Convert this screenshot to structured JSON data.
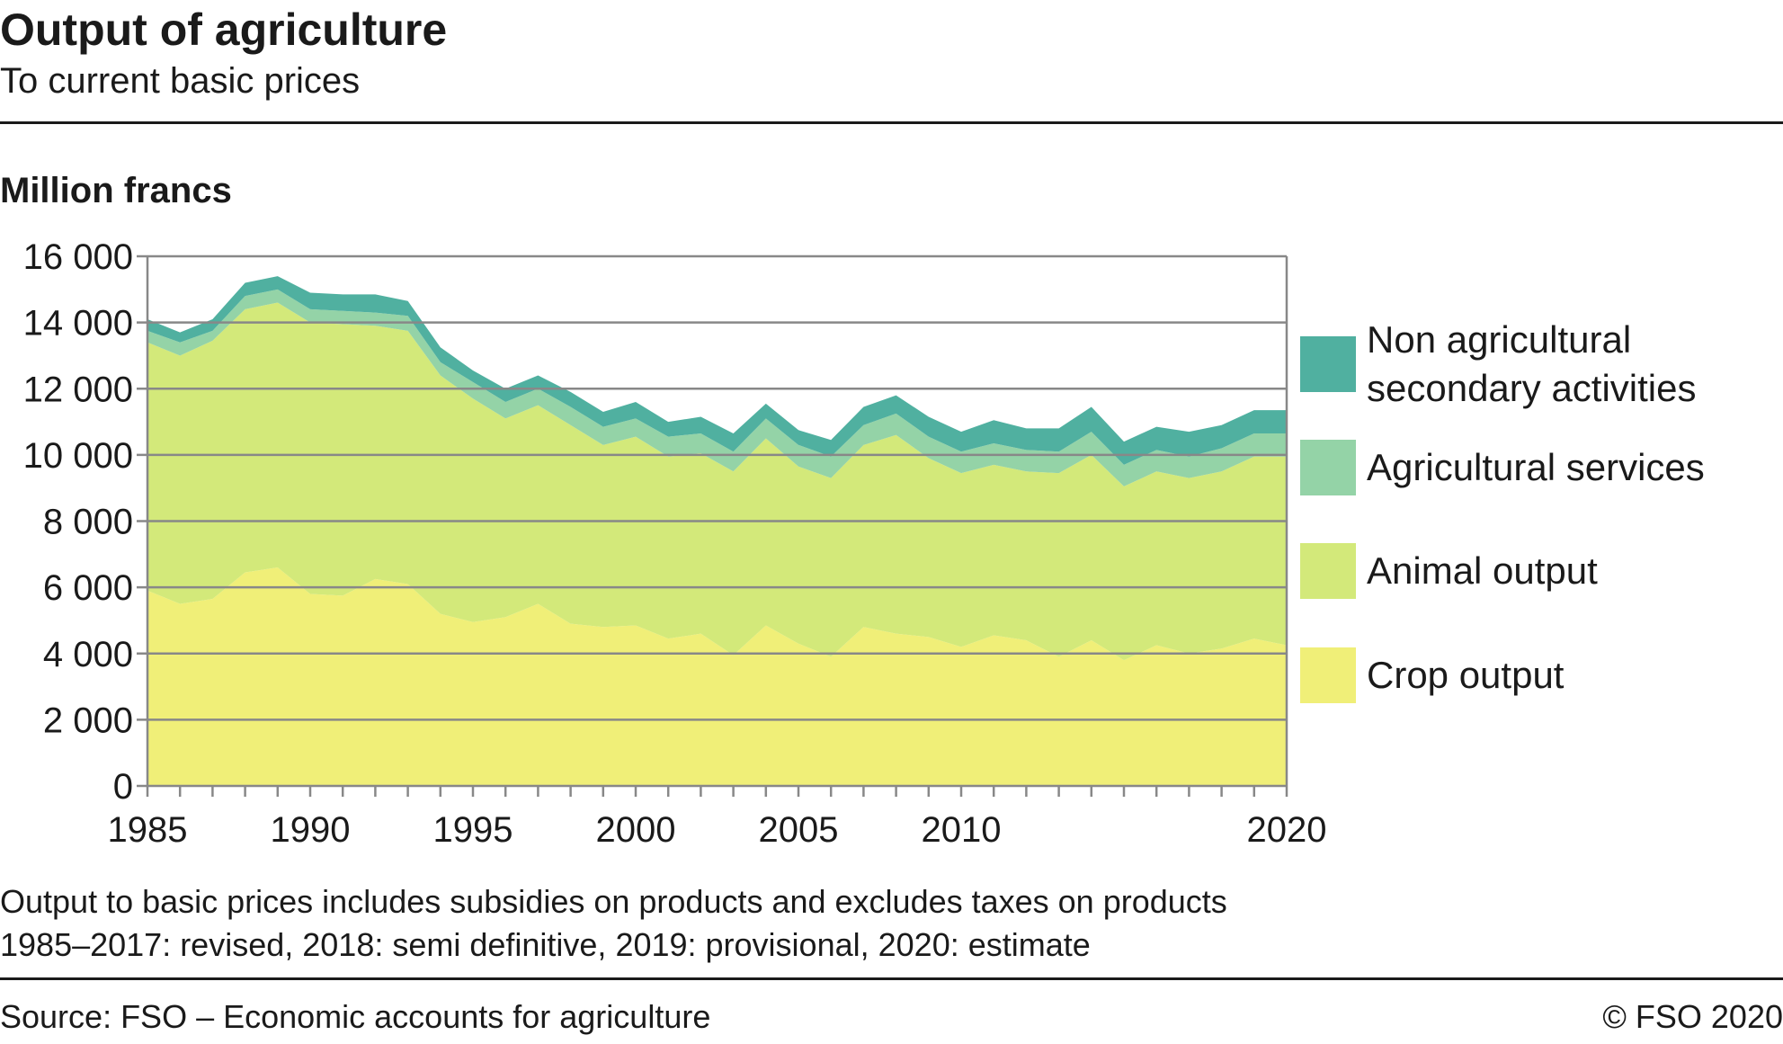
{
  "header": {
    "title": "Output of agriculture",
    "subtitle": "To current basic prices"
  },
  "footer": {
    "note1": "Output to basic prices includes subsidies on products and excludes taxes on products",
    "note2": "1985–2017: revised, 2018: semi definitive, 2019: provisional, 2020: estimate",
    "source": "Source: FSO – Economic accounts for agriculture",
    "copyright": "© FSO 2020"
  },
  "chart_data": {
    "type": "area",
    "stacked": true,
    "title": "Output of agriculture",
    "subtitle": "To current basic prices",
    "ylabel": "Million francs",
    "xlabel": "",
    "ylim": [
      0,
      16000
    ],
    "xlim": [
      1985,
      2020
    ],
    "yticks": [
      0,
      2000,
      4000,
      6000,
      8000,
      10000,
      12000,
      14000,
      16000
    ],
    "ytick_labels": [
      "0",
      "2 000",
      "4 000",
      "6 000",
      "8 000",
      "10 000",
      "12 000",
      "14 000",
      "16 000"
    ],
    "xtick_labels": [
      {
        "year": 1985,
        "label": "1985"
      },
      {
        "year": 1990,
        "label": "1990"
      },
      {
        "year": 1995,
        "label": "1995"
      },
      {
        "year": 2000,
        "label": "2000"
      },
      {
        "year": 2005,
        "label": "2005"
      },
      {
        "year": 2010,
        "label": "2010"
      },
      {
        "year": 2020,
        "label": "2020"
      }
    ],
    "grid": "horizontal",
    "legend_position": "right",
    "x": [
      1985,
      1986,
      1987,
      1988,
      1989,
      1990,
      1991,
      1992,
      1993,
      1994,
      1995,
      1996,
      1997,
      1998,
      1999,
      2000,
      2001,
      2002,
      2003,
      2004,
      2005,
      2006,
      2007,
      2008,
      2009,
      2010,
      2011,
      2012,
      2013,
      2014,
      2015,
      2016,
      2017,
      2018,
      2019,
      2020
    ],
    "series": [
      {
        "name": "Crop output",
        "color": "#f0ef78",
        "values": [
          5900,
          5500,
          5650,
          6450,
          6600,
          5800,
          5750,
          6250,
          6100,
          5200,
          4950,
          5100,
          5500,
          4900,
          4800,
          4850,
          4450,
          4600,
          3950,
          4850,
          4300,
          3900,
          4800,
          4600,
          4500,
          4200,
          4550,
          4400,
          3900,
          4400,
          3800,
          4250,
          4000,
          4150,
          4450,
          4250
        ]
      },
      {
        "name": "Animal output",
        "color": "#d3e97a",
        "values": [
          7500,
          7500,
          7800,
          7950,
          8000,
          8200,
          8200,
          7650,
          7650,
          7200,
          6750,
          6000,
          6000,
          6000,
          5500,
          5700,
          5500,
          5450,
          5550,
          5650,
          5350,
          5400,
          5500,
          6000,
          5400,
          5250,
          5150,
          5100,
          5550,
          5600,
          5250,
          5250,
          5300,
          5350,
          5500,
          5700
        ]
      },
      {
        "name": "Agricultural services",
        "color": "#94d3a7",
        "values": [
          350,
          400,
          300,
          400,
          400,
          400,
          400,
          400,
          450,
          400,
          500,
          500,
          500,
          550,
          550,
          550,
          600,
          600,
          600,
          600,
          650,
          650,
          600,
          650,
          650,
          650,
          650,
          650,
          650,
          700,
          650,
          650,
          650,
          700,
          700,
          700
        ]
      },
      {
        "name": "Non agricultural secondary activities",
        "name_lines": [
          "Non agricultural",
          "secondary activities"
        ],
        "color": "#50b0a0",
        "values": [
          350,
          300,
          350,
          400,
          400,
          500,
          500,
          550,
          450,
          450,
          350,
          400,
          400,
          450,
          450,
          500,
          450,
          500,
          550,
          450,
          450,
          500,
          550,
          550,
          600,
          600,
          700,
          650,
          700,
          750,
          700,
          700,
          750,
          700,
          700,
          700
        ]
      }
    ]
  }
}
